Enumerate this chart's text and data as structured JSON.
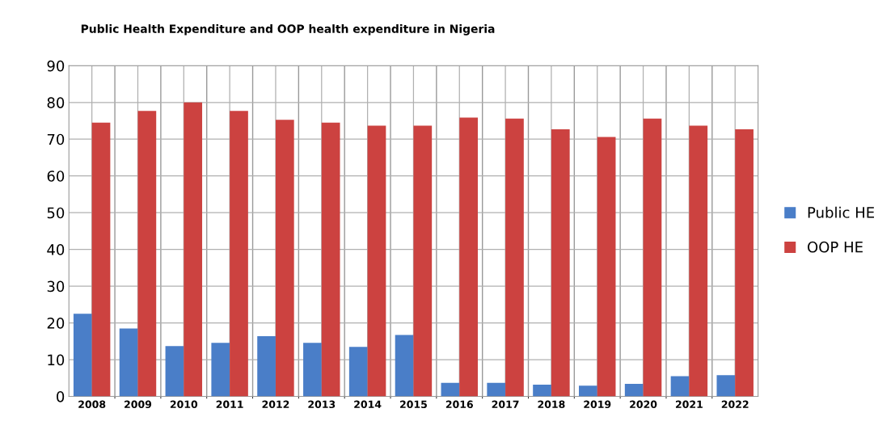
{
  "chart_data": {
    "type": "bar",
    "title": "Public Health Expenditure and OOP health expenditure in Nigeria",
    "categories": [
      "2008",
      "2009",
      "2010",
      "2011",
      "2012",
      "2013",
      "2014",
      "2015",
      "2016",
      "2017",
      "2018",
      "2019",
      "2020",
      "2021",
      "2022"
    ],
    "series": [
      {
        "name": "Public HE",
        "color": "#4a7ec8",
        "values": [
          22.5,
          18.5,
          13.7,
          14.6,
          16.4,
          14.6,
          13.5,
          16.7,
          3.7,
          3.7,
          3.2,
          2.9,
          3.4,
          5.5,
          5.8
        ]
      },
      {
        "name": "OOP HE",
        "color": "#cc4240",
        "values": [
          74.5,
          77.7,
          80.0,
          77.7,
          75.3,
          74.5,
          73.7,
          73.7,
          75.9,
          75.6,
          72.7,
          70.6,
          75.6,
          73.7,
          72.7
        ]
      }
    ],
    "ylim": [
      0,
      90
    ],
    "yticks": [
      0,
      10,
      20,
      30,
      40,
      50,
      60,
      70,
      80,
      90
    ],
    "grid": true,
    "legend": "right"
  }
}
